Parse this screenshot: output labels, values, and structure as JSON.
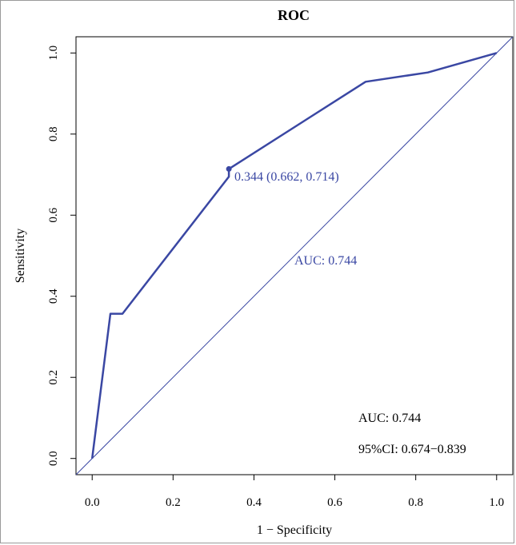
{
  "chart_data": {
    "type": "line",
    "title": "ROC",
    "xlabel": "1 − Specificity",
    "ylabel": "Sensitivity",
    "xlim": [
      -0.04,
      1.04
    ],
    "ylim": [
      -0.04,
      1.04
    ],
    "x_ticks": [
      "0.0",
      "0.2",
      "0.4",
      "0.6",
      "0.8",
      "1.0"
    ],
    "y_ticks": [
      "0.0",
      "0.2",
      "0.4",
      "0.6",
      "0.8",
      "1.0"
    ],
    "x_tick_values": [
      0,
      0.2,
      0.4,
      0.6,
      0.8,
      1.0
    ],
    "y_tick_values": [
      0,
      0.2,
      0.4,
      0.6,
      0.8,
      1.0
    ],
    "series": [
      {
        "x": [
          0,
          0.045,
          0.075,
          0.338,
          0.338,
          0.676,
          0.83,
          1.0
        ],
        "y": [
          0,
          0.357,
          0.357,
          0.695,
          0.714,
          0.929,
          0.952,
          1.0
        ]
      }
    ],
    "reference_line": {
      "x": [
        0,
        1
      ],
      "y": [
        0,
        1
      ]
    },
    "threshold_point": {
      "x": 0.338,
      "y": 0.714
    },
    "threshold_label": "0.344 (0.662, 0.714)",
    "auc_label_plot": "AUC: 0.744",
    "auc_text": "AUC: 0.744",
    "ci_text": "95%CI: 0.674−0.839",
    "colors": {
      "curve": "#3a47a3",
      "annotation": "#3a47a3",
      "axis": "#000000"
    }
  }
}
